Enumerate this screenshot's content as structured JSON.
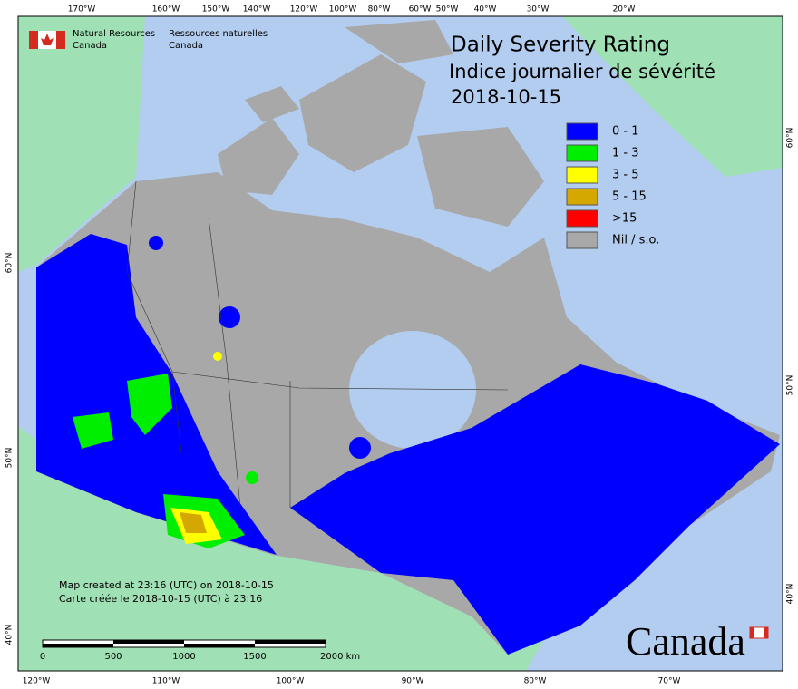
{
  "agency": {
    "en": [
      "Natural Resources",
      "Canada"
    ],
    "fr": [
      "Ressources naturelles",
      "Canada"
    ]
  },
  "title": [
    "Daily Severity Rating",
    "Indice journalier de sévérité",
    "2018-10-15"
  ],
  "legend": [
    {
      "label": "0 - 1",
      "color": "#0000ff"
    },
    {
      "label": "1 - 3",
      "color": "#00ee00"
    },
    {
      "label": "3 - 5",
      "color": "#ffff00"
    },
    {
      "label": "5 - 15",
      "color": "#d4a800"
    },
    {
      "label": ">15",
      "color": "#ff0000"
    },
    {
      "label": "Nil / s.o.",
      "color": "#a8a8a8"
    }
  ],
  "top_longitudes": [
    "170°W",
    "160°W",
    "150°W",
    "140°W",
    "120°W",
    "100°W",
    "80°W",
    "60°W",
    "50°W",
    "40°W",
    "30°W",
    "20°W"
  ],
  "bottom_longitudes": [
    "120°W",
    "110°W",
    "100°W",
    "90°W",
    "80°W",
    "70°W"
  ],
  "left_latitudes": [
    "60°N",
    "50°N",
    "40°N"
  ],
  "right_latitudes": [
    "60°N",
    "50°N",
    "40°N"
  ],
  "notes": [
    "Map created at 23:16 (UTC) on 2018-10-15",
    "Carte créée le 2018-10-15 (UTC) à 23:16"
  ],
  "scale_labels": [
    "0",
    "500",
    "1000",
    "1500",
    "2000  km"
  ],
  "wordmark": "Canada"
}
